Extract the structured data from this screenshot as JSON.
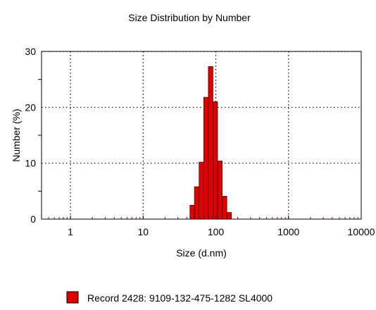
{
  "chart_data": {
    "type": "bar",
    "title": "Size Distribution by Number",
    "xlabel": "Size (d.nm)",
    "ylabel": "Number (%)",
    "x_scale": "log",
    "xlim": [
      0.4,
      10000
    ],
    "ylim": [
      0,
      30
    ],
    "grid": true,
    "legend_position": "bottom",
    "x_ticks": [
      {
        "value": 1,
        "label": "1"
      },
      {
        "value": 10,
        "label": "10"
      },
      {
        "value": 100,
        "label": "100"
      },
      {
        "value": 1000,
        "label": "1000"
      },
      {
        "value": 10000,
        "label": "10000"
      }
    ],
    "y_ticks": [
      {
        "value": 0,
        "label": "0"
      },
      {
        "value": 10,
        "label": "10"
      },
      {
        "value": 20,
        "label": "20"
      },
      {
        "value": 30,
        "label": "30"
      }
    ],
    "series": [
      {
        "name": "Record 2428: 9109-132-475-1282 SL4000",
        "color": "#e00000",
        "bins": [
          {
            "from": 44.0,
            "to": 50.7,
            "value": 2.5
          },
          {
            "from": 50.7,
            "to": 58.8,
            "value": 5.8
          },
          {
            "from": 58.8,
            "to": 68.1,
            "value": 10.2
          },
          {
            "from": 68.1,
            "to": 78.8,
            "value": 21.8
          },
          {
            "from": 78.8,
            "to": 91.3,
            "value": 27.3
          },
          {
            "from": 91.3,
            "to": 105.7,
            "value": 21.0
          },
          {
            "from": 105.7,
            "to": 122.4,
            "value": 10.4
          },
          {
            "from": 122.4,
            "to": 141.8,
            "value": 4.1
          },
          {
            "from": 141.8,
            "to": 164.2,
            "value": 1.2
          }
        ]
      }
    ]
  }
}
